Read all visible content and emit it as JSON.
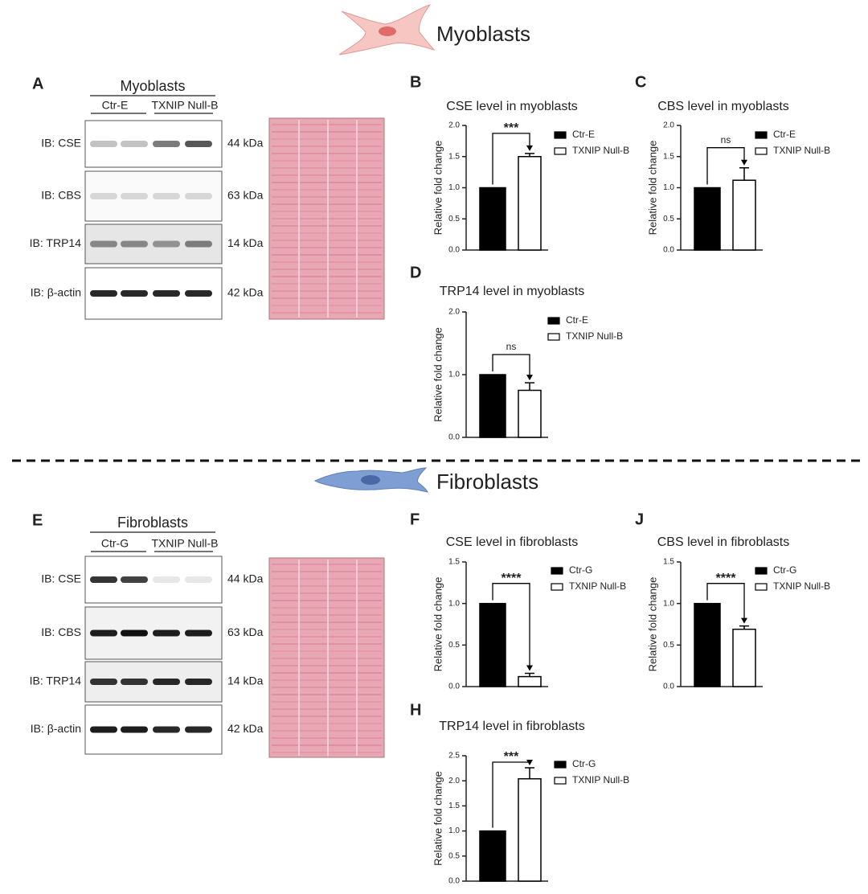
{
  "sections": [
    {
      "title": "Myoblasts"
    },
    {
      "title": "Fibroblasts"
    }
  ],
  "blots": [
    {
      "panel": "A",
      "title": "Myoblasts",
      "groups": [
        "Ctr-E",
        "TXNIP Null-B"
      ],
      "rows": [
        {
          "label": "IB: CSE",
          "size": "44 kDa"
        },
        {
          "label": "IB: CBS",
          "size": "63 kDa"
        },
        {
          "label": "IB: TRP14",
          "size": "14 kDa"
        },
        {
          "label": "IB: β-actin",
          "size": "42 kDa"
        }
      ]
    },
    {
      "panel": "E",
      "title": "Fibroblasts",
      "groups": [
        "Ctr-G",
        "TXNIP Null-B"
      ],
      "rows": [
        {
          "label": "IB: CSE",
          "size": "44 kDa"
        },
        {
          "label": "IB: CBS",
          "size": "63 kDa"
        },
        {
          "label": "IB: TRP14",
          "size": "14 kDa"
        },
        {
          "label": "IB: β-actin",
          "size": "42 kDa"
        }
      ]
    }
  ],
  "chart_data": [
    {
      "panel": "B",
      "type": "bar",
      "title": "CSE level in myoblasts",
      "y_label": "Relative fold change",
      "annotation": "***",
      "series": [
        {
          "name": "Ctr-E",
          "color": "#000000",
          "values": [
            1
          ]
        },
        {
          "name": "TXNIP Null-B",
          "color": "#ffffff",
          "values": [
            1.5
          ],
          "errors": [
            0.05
          ]
        }
      ],
      "ylim": [
        0,
        2
      ],
      "yticks": [
        {
          "value": 0,
          "label": "0.0"
        },
        {
          "value": 0.5,
          "label": "0.5"
        },
        {
          "value": 1,
          "label": "1.0"
        },
        {
          "value": 1.5,
          "label": "1.5"
        },
        {
          "value": 2,
          "label": "2.0"
        }
      ]
    },
    {
      "panel": "C",
      "type": "bar",
      "title": "CBS level in myoblasts",
      "y_label": "Relative fold change",
      "annotation": "ns",
      "series": [
        {
          "name": "Ctr-E",
          "color": "#000000",
          "values": [
            1
          ]
        },
        {
          "name": "TXNIP Null-B",
          "color": "#ffffff",
          "values": [
            1.12
          ],
          "errors": [
            0.2
          ]
        }
      ],
      "ylim": [
        0,
        2
      ],
      "yticks": [
        {
          "value": 0,
          "label": "0.0"
        },
        {
          "value": 0.5,
          "label": "0.5"
        },
        {
          "value": 1,
          "label": "1.0"
        },
        {
          "value": 1.5,
          "label": "1.5"
        },
        {
          "value": 2,
          "label": "2.0"
        }
      ]
    },
    {
      "panel": "D",
      "type": "bar",
      "title": "TRP14 level in myoblasts",
      "y_label": "Relative fold change",
      "annotation": "ns",
      "series": [
        {
          "name": "Ctr-E",
          "color": "#000000",
          "values": [
            1
          ]
        },
        {
          "name": "TXNIP Null-B",
          "color": "#ffffff",
          "values": [
            0.75
          ],
          "errors": [
            0.12
          ]
        }
      ],
      "ylim": [
        0,
        2
      ],
      "yticks": [
        {
          "value": 0,
          "label": "0.0"
        },
        {
          "value": 1,
          "label": "1.0"
        },
        {
          "value": 2,
          "label": "2.0"
        }
      ]
    },
    {
      "panel": "F",
      "type": "bar",
      "title": "CSE level in fibroblasts",
      "y_label": "Relative fold change",
      "annotation": "****",
      "series": [
        {
          "name": "Ctr-G",
          "color": "#000000",
          "values": [
            1
          ]
        },
        {
          "name": "TXNIP Null-B",
          "color": "#ffffff",
          "values": [
            0.12
          ],
          "errors": [
            0.04
          ]
        }
      ],
      "ylim": [
        0,
        1.5
      ],
      "yticks": [
        {
          "value": 0,
          "label": "0.0"
        },
        {
          "value": 0.5,
          "label": "0.5"
        },
        {
          "value": 1,
          "label": "1.0"
        },
        {
          "value": 1.5,
          "label": "1.5"
        }
      ]
    },
    {
      "panel": "J",
      "type": "bar",
      "title": "CBS level in fibroblasts",
      "y_label": "Relative fold change",
      "annotation": "****",
      "series": [
        {
          "name": "Ctr-G",
          "color": "#000000",
          "values": [
            1
          ]
        },
        {
          "name": "TXNIP Null-B",
          "color": "#ffffff",
          "values": [
            0.69
          ],
          "errors": [
            0.04
          ]
        }
      ],
      "ylim": [
        0,
        1.5
      ],
      "yticks": [
        {
          "value": 0,
          "label": "0.0"
        },
        {
          "value": 0.5,
          "label": "0.5"
        },
        {
          "value": 1,
          "label": "1.0"
        },
        {
          "value": 1.5,
          "label": "1.5"
        }
      ]
    },
    {
      "panel": "H",
      "type": "bar",
      "title": "TRP14 level in fibroblasts",
      "y_label": "Relative fold change",
      "annotation": "***",
      "series": [
        {
          "name": "Ctr-G",
          "color": "#000000",
          "values": [
            1
          ]
        },
        {
          "name": "TXNIP Null-B",
          "color": "#ffffff",
          "values": [
            2.04
          ],
          "errors": [
            0.22
          ]
        }
      ],
      "ylim": [
        0,
        2.5
      ],
      "yticks": [
        {
          "value": 0,
          "label": "0.0"
        },
        {
          "value": 0.5,
          "label": "0.5"
        },
        {
          "value": 1,
          "label": "1.0"
        },
        {
          "value": 1.5,
          "label": "1.5"
        },
        {
          "value": 2,
          "label": "2.0"
        },
        {
          "value": 2.5,
          "label": "2.5"
        }
      ]
    }
  ]
}
